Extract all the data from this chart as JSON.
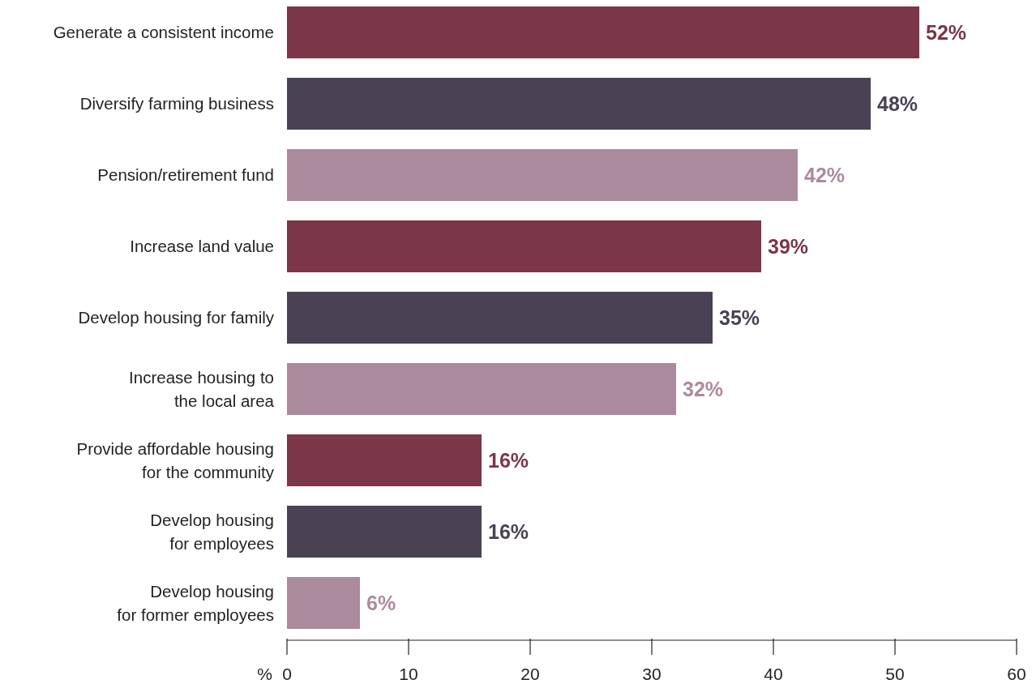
{
  "chart_data": {
    "type": "bar",
    "orientation": "horizontal",
    "xlabel": "%",
    "categories": [
      "Generate a consistent income",
      "Diversify farming business",
      "Pension/retirement fund",
      "Increase land value",
      "Develop housing for family",
      "Increase housing to\nthe local area",
      "Provide affordable housing\nfor the community",
      "Develop housing\nfor employees",
      "Develop housing\nfor former employees"
    ],
    "values": [
      52,
      48,
      42,
      39,
      35,
      32,
      16,
      16,
      6
    ],
    "colors": [
      "#7b3648",
      "#4a4254",
      "#ac8a9e",
      "#7b3648",
      "#4a4254",
      "#ac8a9e",
      "#7b3648",
      "#4a4254",
      "#ac8a9e"
    ],
    "value_labels": [
      "52%",
      "48%",
      "42%",
      "39%",
      "35%",
      "32%",
      "16%",
      "16%",
      "6%"
    ],
    "xlim": [
      0,
      60
    ],
    "xticks": [
      0,
      10,
      20,
      30,
      40,
      50,
      60
    ],
    "grid": false
  }
}
